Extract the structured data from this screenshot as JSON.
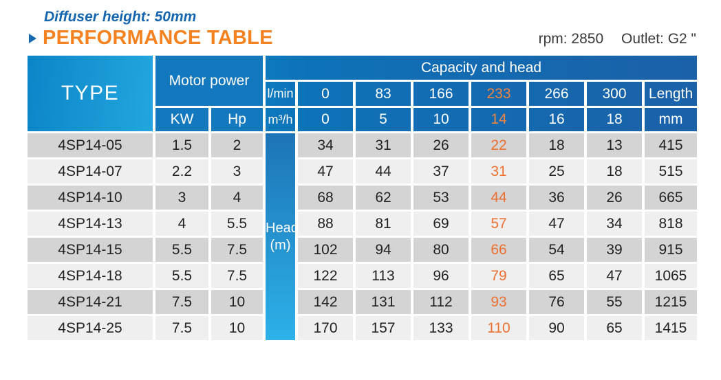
{
  "page": {
    "diffuser_note": "Diffuser height: 50mm",
    "title": "PERFORMANCE TABLE",
    "rpm": "rpm: 2850",
    "outlet": "Outlet: G2 \""
  },
  "colors": {
    "accent_orange_data": "#ed7031",
    "accent_orange_header": "#f08440",
    "title_orange": "#f58220",
    "note_blue": "#1566ae",
    "header_blue_mid": "#1478be",
    "header_blue_dark": "#1b61a8",
    "type_cell_cyan": "#1a9bd6",
    "head_column_top": "#1d74b6",
    "head_column_bottom": "#2db1e8",
    "row_gray": "#d4d4d4",
    "row_light": "#efefef"
  },
  "table": {
    "type_header": "TYPE",
    "motor_power_header": "Motor power",
    "kw_header": "KW",
    "hp_header": "Hp",
    "capacity_header": "Capacity and head",
    "lmin_label": "l/min",
    "m3h_label": "m³/h",
    "length_header": "Length",
    "mm_header": "mm",
    "head_column_label": [
      "Head",
      "(m)"
    ],
    "lmin_values": [
      "0",
      "83",
      "166",
      "233",
      "266",
      "300"
    ],
    "m3h_values": [
      "0",
      "5",
      "10",
      "14",
      "16",
      "18"
    ],
    "highlight_column_index": 3,
    "rows": [
      {
        "type": "4SP14-05",
        "kw": "1.5",
        "hp": "2",
        "heads": [
          "34",
          "31",
          "26",
          "22",
          "18",
          "13"
        ],
        "length": "415"
      },
      {
        "type": "4SP14-07",
        "kw": "2.2",
        "hp": "3",
        "heads": [
          "47",
          "44",
          "37",
          "31",
          "25",
          "18"
        ],
        "length": "515"
      },
      {
        "type": "4SP14-10",
        "kw": "3",
        "hp": "4",
        "heads": [
          "68",
          "62",
          "53",
          "44",
          "36",
          "26"
        ],
        "length": "665"
      },
      {
        "type": "4SP14-13",
        "kw": "4",
        "hp": "5.5",
        "heads": [
          "88",
          "81",
          "69",
          "57",
          "47",
          "34"
        ],
        "length": "818"
      },
      {
        "type": "4SP14-15",
        "kw": "5.5",
        "hp": "7.5",
        "heads": [
          "102",
          "94",
          "80",
          "66",
          "54",
          "39"
        ],
        "length": "915"
      },
      {
        "type": "4SP14-18",
        "kw": "5.5",
        "hp": "7.5",
        "heads": [
          "122",
          "113",
          "96",
          "79",
          "65",
          "47"
        ],
        "length": "1065"
      },
      {
        "type": "4SP14-21",
        "kw": "7.5",
        "hp": "10",
        "heads": [
          "142",
          "131",
          "112",
          "93",
          "76",
          "55"
        ],
        "length": "1215"
      },
      {
        "type": "4SP14-25",
        "kw": "7.5",
        "hp": "10",
        "heads": [
          "170",
          "157",
          "133",
          "110",
          "90",
          "65"
        ],
        "length": "1415"
      }
    ]
  }
}
